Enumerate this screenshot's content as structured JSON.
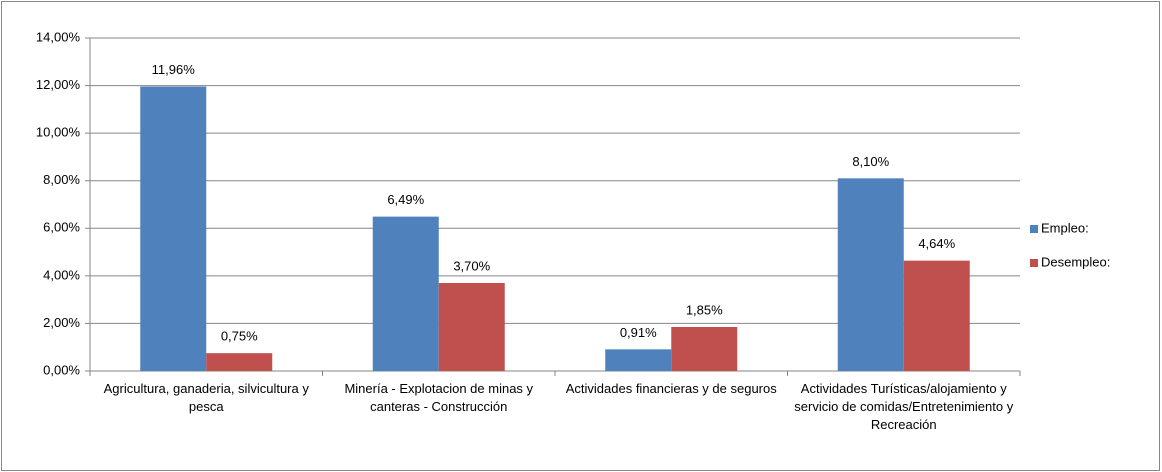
{
  "chart_data": {
    "type": "bar",
    "categories": [
      "Agricultura, ganaderia, silvicultura y pesca",
      "Minería - Explotacion de minas y canteras - Construcción",
      "Actividades financieras y de seguros",
      "Actividades Turísticas/alojamiento y servicio de comidas/Entretenimiento y Recreación"
    ],
    "series": [
      {
        "name": "Empleo:",
        "color": "#4f81bd",
        "values": [
          11.96,
          6.49,
          0.91,
          8.1
        ],
        "value_labels": [
          "11,96%",
          "6,49%",
          "0,91%",
          "8,10%"
        ]
      },
      {
        "name": "Desempleo:",
        "color": "#c0504d",
        "values": [
          0.75,
          3.7,
          1.85,
          4.64
        ],
        "value_labels": [
          "0,75%",
          "3,70%",
          "1,85%",
          "4,64%"
        ]
      }
    ],
    "ylim": [
      0,
      14
    ],
    "yticks": [
      {
        "value": 0,
        "label": "0,00%"
      },
      {
        "value": 2,
        "label": "2,00%"
      },
      {
        "value": 4,
        "label": "4,00%"
      },
      {
        "value": 6,
        "label": "6,00%"
      },
      {
        "value": 8,
        "label": "8,00%"
      },
      {
        "value": 10,
        "label": "10,00%"
      },
      {
        "value": 12,
        "label": "12,00%"
      },
      {
        "value": 14,
        "label": "14,00%"
      }
    ],
    "grid": true,
    "legend": "right"
  }
}
